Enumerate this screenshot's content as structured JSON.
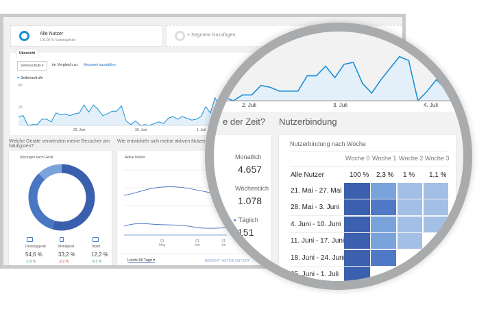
{
  "segments": {
    "active": {
      "name": "Alle Nutzer",
      "sub": "100,00 % Seitenaufrufe"
    },
    "add": "+ Segment hinzufügen"
  },
  "tab": "Übersicht",
  "controls": {
    "metric": "Seitenaufrufe",
    "compare": "im Vergleich zu",
    "select_metric": "Messwert auswählen"
  },
  "chart": {
    "legend": "Seitenaufrufe",
    "y_ticks": [
      "40",
      "20"
    ],
    "x_ticks": [
      "29. Juni",
      "30. Juni",
      "1. Juli"
    ],
    "color": "#1a8fd6",
    "values": [
      10,
      11,
      0,
      1,
      1,
      7,
      7,
      4,
      14,
      12,
      13,
      11,
      13,
      14,
      23,
      15,
      23,
      18,
      11,
      13,
      16,
      16,
      22,
      5,
      1,
      5,
      0,
      1,
      0,
      2,
      4,
      2,
      8,
      10,
      7,
      10,
      8,
      6,
      7,
      10,
      21,
      14,
      31,
      20,
      30,
      32,
      17,
      23,
      9,
      3,
      0,
      12,
      2,
      0,
      3,
      3,
      8,
      7,
      5,
      5,
      5,
      13,
      13,
      18,
      12,
      19,
      20,
      9,
      4,
      11,
      17,
      23,
      21,
      0,
      5,
      11,
      6,
      0,
      4,
      6,
      10,
      14,
      13
    ]
  },
  "devices": {
    "question": "Welche Geräte verwenden meine Besucher am häufigsten?",
    "title": "Sitzungen nach Gerät",
    "items": [
      {
        "label": "Desktopgerät",
        "value": "54,6 %",
        "change": "↑1,9 %",
        "dir": "up",
        "color": "#3a5fad"
      },
      {
        "label": "Mobilgerät",
        "value": "33,2 %",
        "change": "↓2,2 %",
        "dir": "down",
        "color": "#4a77c4"
      },
      {
        "label": "Tablet",
        "value": "12,2 %",
        "change": "↑0,3 %",
        "dir": "up",
        "color": "#7ba3db"
      }
    ]
  },
  "active": {
    "question": "Wie entwickeln sich meine aktiven Nutzer im Laufe der Zeit?",
    "question_tail": "e der Zeit?",
    "title": "Aktive Nutzer",
    "x_ticks": [
      [
        "01",
        "May"
      ],
      [
        "01",
        "Jun"
      ],
      [
        "01",
        "Jul"
      ]
    ],
    "range": "Letzte 90 Tage",
    "report": "BERICHT \"AKTIVE NUTZER\"",
    "stats": [
      {
        "label": "Monatlich",
        "value": "4.657"
      },
      {
        "label": "Wöchentlich",
        "value": "1.078"
      },
      {
        "label": "Täglich",
        "value": "151"
      }
    ]
  },
  "zoom_chart": {
    "x_ticks": [
      "2. Juli",
      "3. Juli",
      "4. Juli"
    ]
  },
  "retention": {
    "heading": "Nutzerbindung",
    "title": "Nutzerbindung nach Woche",
    "weeks": [
      "Woche 0",
      "Woche 1",
      "Woche 2",
      "Woche 3"
    ],
    "all_label": "Alle Nutzer",
    "all_values": [
      "100 %",
      "2,3 %",
      "1 %",
      "1,1 %"
    ],
    "rows": [
      {
        "label": "21. Mai - 27. Mai",
        "levels": [
          3,
          1,
          0,
          0
        ]
      },
      {
        "label": "28. Mai - 3. Juni",
        "levels": [
          3,
          2,
          0,
          0
        ]
      },
      {
        "label": "4. Juni - 10. Juni",
        "levels": [
          3,
          1,
          0,
          0
        ]
      },
      {
        "label": "11. Juni - 17. Juni",
        "levels": [
          3,
          1,
          0
        ]
      },
      {
        "label": "18. Juni - 24. Juni",
        "levels": [
          3,
          2
        ]
      },
      {
        "label": "25. Juni - 1. Juli",
        "levels": [
          3
        ]
      }
    ],
    "colors": [
      "#a3bfe6",
      "#7ba3db",
      "#4f78c6",
      "#3b60ad"
    ]
  }
}
